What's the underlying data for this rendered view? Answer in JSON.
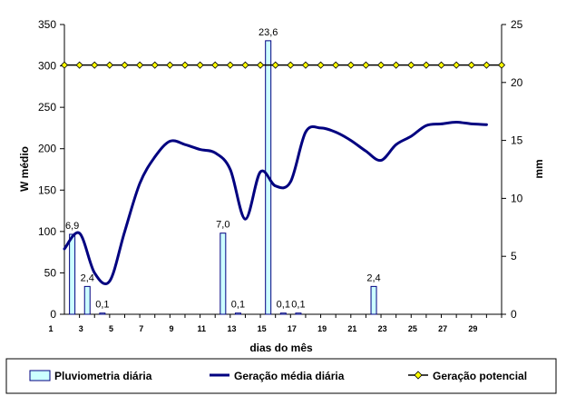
{
  "chart_data": {
    "type": "bar+line",
    "xlabel": "dias do mês",
    "ylabel_left": "W médio",
    "ylabel_right": "mm",
    "ylim_left": [
      0,
      350
    ],
    "yticks_left": [
      "0",
      "50",
      "100",
      "150",
      "200",
      "250",
      "300",
      "350"
    ],
    "ylim_right": [
      0,
      25
    ],
    "yticks_right": [
      "0",
      "5",
      "10",
      "15",
      "20",
      "25"
    ],
    "xlim": [
      1,
      30
    ],
    "xticks": [
      "1",
      "3",
      "5",
      "7",
      "9",
      "11",
      "13",
      "15",
      "17",
      "19",
      "21",
      "23",
      "25",
      "27",
      "29"
    ],
    "xticks_minor": [
      "2",
      "3",
      "4",
      "5",
      "6",
      "7",
      "8",
      "9",
      "10",
      "11",
      "12",
      "13",
      "14",
      "15",
      "16",
      "17",
      "18",
      "19",
      "20",
      "21",
      "22",
      "23",
      "24",
      "25",
      "26",
      "27",
      "28",
      "29",
      "30"
    ],
    "grid": false,
    "legend_position": "bottom",
    "colors": {
      "bar_fill": "#ccffff",
      "bar_stroke": "#000080",
      "line": "#000080",
      "potential_line": "#000000",
      "potential_marker": "#ffff00"
    },
    "series": [
      {
        "name": "Pluviometria diária",
        "kind": "bar",
        "axis": "right",
        "points": [
          {
            "x": 2,
            "y": 6.9,
            "label": "6,9"
          },
          {
            "x": 3,
            "y": 2.4,
            "label": "2,4"
          },
          {
            "x": 4,
            "y": 0.1,
            "label": "0,1"
          },
          {
            "x": 12,
            "y": 7.0,
            "label": "7,0"
          },
          {
            "x": 13,
            "y": 0.1,
            "label": "0,1"
          },
          {
            "x": 15,
            "y": 23.6,
            "label": "23,6"
          },
          {
            "x": 16,
            "y": 0.1,
            "label": "0,1"
          },
          {
            "x": 17,
            "y": 0.1,
            "label": "0,1"
          },
          {
            "x": 22,
            "y": 2.4,
            "label": "2,4"
          }
        ]
      },
      {
        "name": "Geração média diária",
        "kind": "line",
        "axis": "left",
        "x": [
          1,
          2,
          3,
          4,
          5,
          6,
          7,
          8,
          9,
          10,
          11,
          12,
          13,
          14,
          15,
          16,
          17,
          18,
          19,
          20,
          21,
          22,
          23,
          24,
          25,
          26,
          27,
          28,
          29
        ],
        "y": [
          79,
          98,
          50,
          40,
          100,
          158,
          190,
          209,
          205,
          199,
          195,
          175,
          115,
          172,
          155,
          160,
          220,
          225,
          220,
          210,
          197,
          186,
          205,
          215,
          228,
          230,
          232,
          230,
          229
        ]
      },
      {
        "name": "Geração potencial",
        "kind": "line-marker",
        "axis": "left",
        "x": [
          1,
          2,
          3,
          4,
          5,
          6,
          7,
          8,
          9,
          10,
          11,
          12,
          13,
          14,
          15,
          16,
          17,
          18,
          19,
          20,
          21,
          22,
          23,
          24,
          25,
          26,
          27,
          28,
          29,
          30
        ],
        "y": [
          301,
          301,
          301,
          301,
          301,
          301,
          301,
          301,
          301,
          301,
          301,
          301,
          301,
          301,
          301,
          301,
          301,
          301,
          301,
          301,
          301,
          301,
          301,
          301,
          301,
          301,
          301,
          301,
          301,
          301
        ]
      }
    ]
  }
}
